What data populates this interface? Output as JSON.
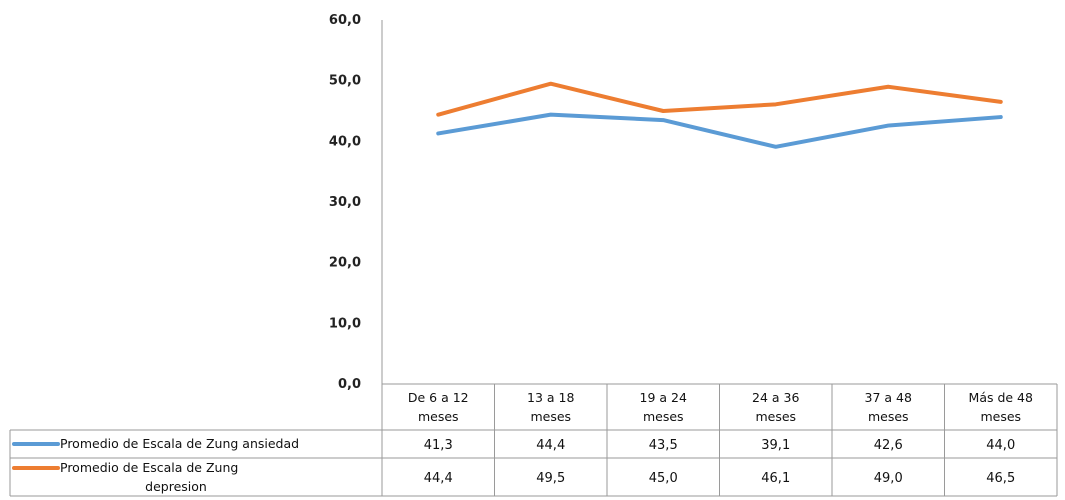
{
  "chart_data": {
    "type": "line",
    "title": "",
    "xlabel": "",
    "ylabel": "",
    "ylim": [
      0,
      60
    ],
    "yticks": [
      "0,0",
      "10,0",
      "20,0",
      "30,0",
      "40,0",
      "50,0",
      "60,0"
    ],
    "categories": [
      [
        "De 6 a 12",
        "meses"
      ],
      [
        "13 a 18",
        "meses"
      ],
      [
        "19 a 24",
        "meses"
      ],
      [
        "24 a 36",
        "meses"
      ],
      [
        "37 a 48",
        "meses"
      ],
      [
        "Más de 48",
        "meses"
      ]
    ],
    "grid": false,
    "legend": "data-table-left",
    "series": [
      {
        "name": "Promedio de Escala de Zung ansiedad",
        "name_lines": [
          "Promedio de Escala de Zung ansiedad"
        ],
        "color": "#5B9BD5",
        "values": [
          41.3,
          44.4,
          43.5,
          39.1,
          42.6,
          44.0
        ],
        "labels": [
          "41,3",
          "44,4",
          "43,5",
          "39,1",
          "42,6",
          "44,0"
        ]
      },
      {
        "name": "Promedio de Escala de Zung depresion",
        "name_lines": [
          "Promedio de Escala de Zung",
          "depresion"
        ],
        "color": "#ED7D31",
        "values": [
          44.4,
          49.5,
          45.0,
          46.1,
          49.0,
          46.5
        ],
        "labels": [
          "44,4",
          "49,5",
          "45,0",
          "46,1",
          "49,0",
          "46,5"
        ]
      }
    ]
  }
}
